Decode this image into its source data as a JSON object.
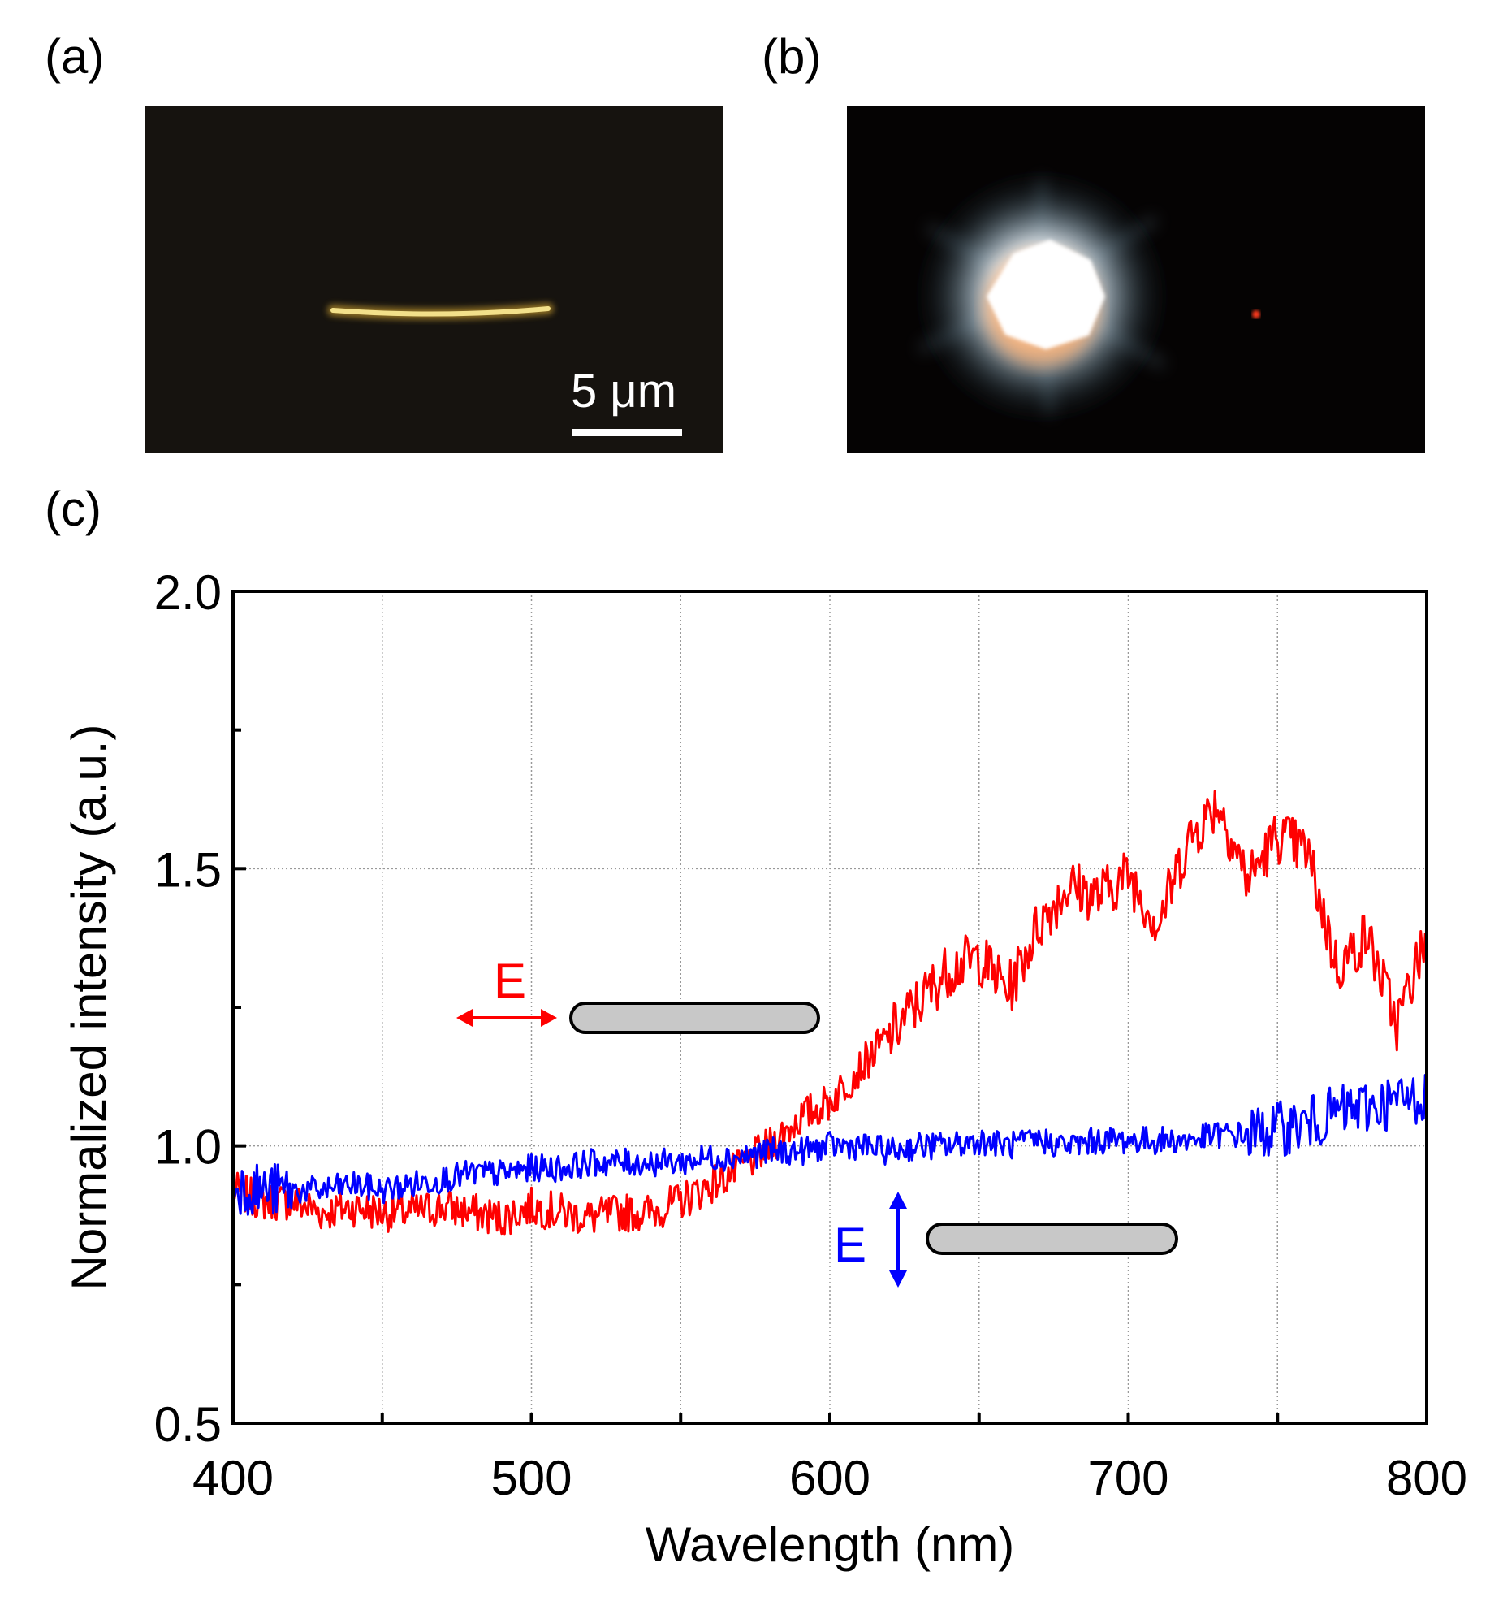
{
  "panels": {
    "a": {
      "label": "(a)",
      "scale_bar": "5 μm"
    },
    "b": {
      "label": "(b)"
    },
    "c": {
      "label": "(c)"
    }
  },
  "colors": {
    "red_series": "#ff0000",
    "blue_series": "#0000ff",
    "rod_fill": "#c8c8c8",
    "grid": "#999999"
  },
  "chart_data": {
    "type": "line",
    "xlabel": "Wavelength (nm)",
    "ylabel": "Normalized intensity (a.u.)",
    "xlim": [
      400,
      800
    ],
    "ylim": [
      0.5,
      2.0
    ],
    "xticks": [
      400,
      500,
      600,
      700,
      800
    ],
    "yticks": [
      "0.5",
      "1.0",
      "1.5",
      "2.0"
    ],
    "grid": true,
    "annotations": [
      {
        "text": "E",
        "polarization": "horizontal",
        "series": "red"
      },
      {
        "text": "E",
        "polarization": "vertical",
        "series": "blue"
      }
    ],
    "series": [
      {
        "color": "red",
        "x": [
          400,
          410,
          420,
          430,
          440,
          450,
          460,
          470,
          480,
          490,
          500,
          510,
          520,
          530,
          540,
          550,
          560,
          570,
          580,
          590,
          600,
          610,
          620,
          630,
          640,
          650,
          660,
          670,
          680,
          690,
          700,
          710,
          720,
          730,
          740,
          750,
          760,
          770,
          780,
          790,
          800
        ],
        "y": [
          0.92,
          0.9,
          0.9,
          0.88,
          0.89,
          0.88,
          0.88,
          0.89,
          0.88,
          0.87,
          0.89,
          0.88,
          0.87,
          0.88,
          0.88,
          0.9,
          0.93,
          0.96,
          1.0,
          1.05,
          1.08,
          1.14,
          1.2,
          1.26,
          1.32,
          1.34,
          1.28,
          1.4,
          1.47,
          1.45,
          1.49,
          1.4,
          1.55,
          1.62,
          1.48,
          1.56,
          1.53,
          1.32,
          1.38,
          1.22,
          1.38
        ]
      },
      {
        "color": "blue",
        "x": [
          400,
          410,
          420,
          430,
          440,
          450,
          460,
          470,
          480,
          490,
          500,
          510,
          520,
          530,
          540,
          550,
          560,
          570,
          580,
          590,
          600,
          610,
          620,
          630,
          640,
          650,
          660,
          670,
          680,
          690,
          700,
          710,
          720,
          730,
          740,
          750,
          760,
          770,
          780,
          790,
          800
        ],
        "y": [
          0.93,
          0.92,
          0.92,
          0.92,
          0.93,
          0.92,
          0.93,
          0.94,
          0.95,
          0.95,
          0.96,
          0.96,
          0.97,
          0.97,
          0.97,
          0.97,
          0.98,
          0.98,
          0.99,
          0.99,
          1.0,
          1.0,
          0.99,
          1.0,
          1.0,
          1.01,
          1.0,
          1.01,
          1.0,
          1.01,
          1.01,
          1.01,
          1.01,
          1.02,
          1.02,
          1.03,
          1.04,
          1.06,
          1.07,
          1.08,
          1.09
        ]
      }
    ]
  }
}
